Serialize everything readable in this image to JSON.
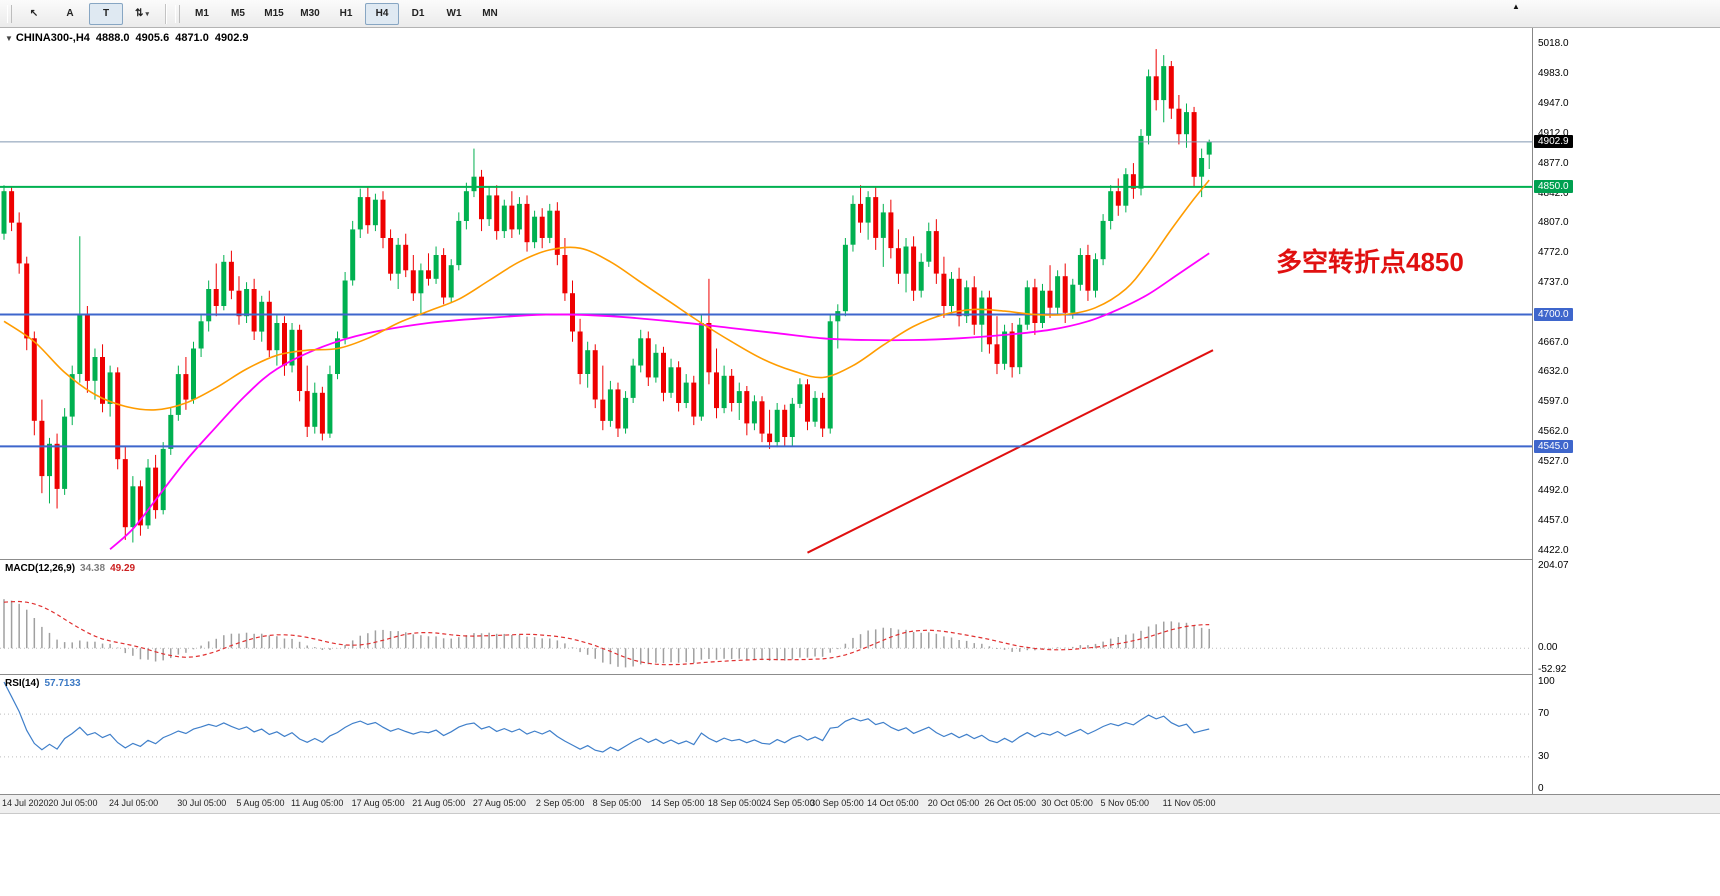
{
  "toolbar": {
    "tools": [
      {
        "name": "cursor-tool",
        "label": "↖",
        "pressed": false
      },
      {
        "name": "text-annotation-tool",
        "label": "A",
        "pressed": false
      },
      {
        "name": "text-box-tool",
        "label": "T",
        "pressed": true
      },
      {
        "name": "indicators-dropdown",
        "label": "⇅",
        "caret": "▾",
        "pressed": false
      }
    ],
    "timeframes": [
      "M1",
      "M5",
      "M15",
      "M30",
      "H1",
      "H4",
      "D1",
      "W1",
      "MN"
    ],
    "active_timeframe": "H4",
    "more_icon": "▲"
  },
  "title": {
    "marker": "▼",
    "symbol": "CHINA300-,H4",
    "open": "4888.0",
    "high": "4905.6",
    "low": "4871.0",
    "close": "4902.9"
  },
  "annotation": {
    "text": "多空转折点4850",
    "color": "#e01010"
  },
  "macd_panel": {
    "name": "MACD(12,26,9)",
    "value_main": "34.38",
    "value_signal": "49.29",
    "scale": [
      "204.07",
      "0.00",
      "-52.92"
    ],
    "max": 204.07,
    "min": -52.92
  },
  "rsi_panel": {
    "name": "RSI(14)",
    "value": "57.7133",
    "scale": [
      "100",
      "70",
      "30",
      "0"
    ],
    "levels": [
      70,
      30
    ]
  },
  "price_scale": {
    "ticks": [
      "5018.0",
      "4983.0",
      "4947.0",
      "4912.0",
      "4877.0",
      "4842.0",
      "4807.0",
      "4772.0",
      "4737.0",
      "4702.0",
      "4667.0",
      "4632.0",
      "4597.0",
      "4562.0",
      "4527.0",
      "4492.0",
      "4457.0",
      "4422.0"
    ],
    "tagged": [
      {
        "value": 4902.9,
        "label": "4902.9",
        "bg": "#000000"
      },
      {
        "value": 4850.0,
        "label": "4850.0",
        "bg": "#00a050"
      },
      {
        "value": 4700.0,
        "label": "4700.0",
        "bg": "#3e66cc"
      },
      {
        "value": 4545.0,
        "label": "4545.0",
        "bg": "#3e66cc"
      }
    ]
  },
  "colors": {
    "up": "#00b050",
    "down": "#ee0000",
    "ma_fast": "#ff9c00",
    "ma_slow": "#ff00ff",
    "macd_bar": "#a0a0a0",
    "macd_signal": "#e03030",
    "rsi_line": "#3f7fca",
    "bid_line": "#8096b0",
    "trend_line": "#e01010"
  },
  "chart_data": {
    "type": "candlestick",
    "symbol": "CHINA300",
    "timeframe": "H4",
    "ylim": [
      4422,
      5018
    ],
    "candles": [
      [
        4795,
        4852,
        4788,
        4845
      ],
      [
        4845,
        4850,
        4798,
        4808
      ],
      [
        4808,
        4820,
        4748,
        4760
      ],
      [
        4760,
        4768,
        4658,
        4672
      ],
      [
        4672,
        4680,
        4558,
        4575
      ],
      [
        4575,
        4600,
        4490,
        4510
      ],
      [
        4510,
        4555,
        4478,
        4548
      ],
      [
        4548,
        4560,
        4472,
        4495
      ],
      [
        4495,
        4590,
        4488,
        4580
      ],
      [
        4580,
        4640,
        4570,
        4630
      ],
      [
        4630,
        4792,
        4620,
        4700
      ],
      [
        4700,
        4710,
        4608,
        4622
      ],
      [
        4622,
        4660,
        4600,
        4650
      ],
      [
        4650,
        4665,
        4585,
        4595
      ],
      [
        4595,
        4640,
        4580,
        4632
      ],
      [
        4632,
        4638,
        4518,
        4530
      ],
      [
        4530,
        4545,
        4435,
        4450
      ],
      [
        4450,
        4510,
        4432,
        4498
      ],
      [
        4498,
        4505,
        4440,
        4452
      ],
      [
        4452,
        4530,
        4448,
        4520
      ],
      [
        4520,
        4535,
        4460,
        4470
      ],
      [
        4470,
        4550,
        4465,
        4542
      ],
      [
        4542,
        4590,
        4535,
        4582
      ],
      [
        4582,
        4640,
        4575,
        4630
      ],
      [
        4630,
        4650,
        4588,
        4600
      ],
      [
        4600,
        4668,
        4595,
        4660
      ],
      [
        4660,
        4700,
        4650,
        4692
      ],
      [
        4692,
        4740,
        4680,
        4730
      ],
      [
        4730,
        4760,
        4698,
        4710
      ],
      [
        4710,
        4770,
        4705,
        4762
      ],
      [
        4762,
        4775,
        4718,
        4728
      ],
      [
        4728,
        4745,
        4688,
        4698
      ],
      [
        4698,
        4738,
        4690,
        4730
      ],
      [
        4730,
        4742,
        4670,
        4680
      ],
      [
        4680,
        4722,
        4668,
        4715
      ],
      [
        4715,
        4728,
        4650,
        4658
      ],
      [
        4658,
        4700,
        4640,
        4690
      ],
      [
        4690,
        4698,
        4628,
        4640
      ],
      [
        4640,
        4690,
        4632,
        4682
      ],
      [
        4682,
        4688,
        4598,
        4610
      ],
      [
        4610,
        4640,
        4556,
        4568
      ],
      [
        4568,
        4620,
        4560,
        4608
      ],
      [
        4608,
        4615,
        4552,
        4560
      ],
      [
        4560,
        4640,
        4555,
        4630
      ],
      [
        4630,
        4680,
        4624,
        4672
      ],
      [
        4672,
        4750,
        4665,
        4740
      ],
      [
        4740,
        4810,
        4734,
        4800
      ],
      [
        4800,
        4848,
        4790,
        4838
      ],
      [
        4838,
        4850,
        4795,
        4805
      ],
      [
        4805,
        4842,
        4798,
        4835
      ],
      [
        4835,
        4845,
        4778,
        4790
      ],
      [
        4790,
        4800,
        4740,
        4748
      ],
      [
        4748,
        4790,
        4730,
        4782
      ],
      [
        4782,
        4795,
        4744,
        4752
      ],
      [
        4752,
        4770,
        4716,
        4725
      ],
      [
        4725,
        4760,
        4700,
        4752
      ],
      [
        4752,
        4772,
        4734,
        4742
      ],
      [
        4742,
        4780,
        4736,
        4770
      ],
      [
        4770,
        4778,
        4712,
        4720
      ],
      [
        4720,
        4765,
        4714,
        4758
      ],
      [
        4758,
        4820,
        4752,
        4810
      ],
      [
        4810,
        4855,
        4800,
        4845
      ],
      [
        4845,
        4895,
        4838,
        4862
      ],
      [
        4862,
        4870,
        4798,
        4812
      ],
      [
        4812,
        4850,
        4804,
        4840
      ],
      [
        4840,
        4852,
        4788,
        4798
      ],
      [
        4798,
        4835,
        4790,
        4828
      ],
      [
        4828,
        4845,
        4790,
        4800
      ],
      [
        4800,
        4838,
        4794,
        4830
      ],
      [
        4830,
        4840,
        4774,
        4785
      ],
      [
        4785,
        4822,
        4778,
        4815
      ],
      [
        4815,
        4825,
        4778,
        4790
      ],
      [
        4790,
        4830,
        4784,
        4822
      ],
      [
        4822,
        4832,
        4758,
        4770
      ],
      [
        4770,
        4790,
        4716,
        4725
      ],
      [
        4725,
        4740,
        4668,
        4680
      ],
      [
        4680,
        4695,
        4618,
        4630
      ],
      [
        4630,
        4668,
        4614,
        4658
      ],
      [
        4658,
        4665,
        4590,
        4600
      ],
      [
        4600,
        4640,
        4564,
        4575
      ],
      [
        4575,
        4622,
        4568,
        4612
      ],
      [
        4612,
        4620,
        4556,
        4566
      ],
      [
        4566,
        4610,
        4560,
        4602
      ],
      [
        4602,
        4648,
        4596,
        4640
      ],
      [
        4640,
        4682,
        4632,
        4672
      ],
      [
        4672,
        4680,
        4616,
        4626
      ],
      [
        4626,
        4665,
        4620,
        4655
      ],
      [
        4655,
        4662,
        4598,
        4608
      ],
      [
        4608,
        4648,
        4602,
        4638
      ],
      [
        4638,
        4645,
        4586,
        4596
      ],
      [
        4596,
        4630,
        4590,
        4620
      ],
      [
        4620,
        4628,
        4570,
        4580
      ],
      [
        4580,
        4700,
        4575,
        4690
      ],
      [
        4690,
        4742,
        4618,
        4632
      ],
      [
        4632,
        4660,
        4578,
        4590
      ],
      [
        4590,
        4640,
        4584,
        4628
      ],
      [
        4628,
        4636,
        4586,
        4596
      ],
      [
        4596,
        4620,
        4576,
        4610
      ],
      [
        4610,
        4616,
        4558,
        4572
      ],
      [
        4572,
        4605,
        4564,
        4598
      ],
      [
        4598,
        4604,
        4550,
        4560
      ],
      [
        4560,
        4588,
        4542,
        4550
      ],
      [
        4550,
        4596,
        4544,
        4588
      ],
      [
        4588,
        4594,
        4546,
        4556
      ],
      [
        4556,
        4602,
        4545,
        4595
      ],
      [
        4595,
        4625,
        4590,
        4618
      ],
      [
        4618,
        4624,
        4564,
        4574
      ],
      [
        4574,
        4610,
        4568,
        4602
      ],
      [
        4602,
        4608,
        4556,
        4566
      ],
      [
        4566,
        4700,
        4560,
        4692
      ],
      [
        4692,
        4712,
        4660,
        4704
      ],
      [
        4704,
        4790,
        4698,
        4782
      ],
      [
        4782,
        4840,
        4774,
        4830
      ],
      [
        4830,
        4852,
        4796,
        4808
      ],
      [
        4808,
        4845,
        4788,
        4838
      ],
      [
        4838,
        4850,
        4776,
        4790
      ],
      [
        4790,
        4830,
        4756,
        4820
      ],
      [
        4820,
        4835,
        4766,
        4778
      ],
      [
        4778,
        4800,
        4736,
        4748
      ],
      [
        4748,
        4790,
        4726,
        4780
      ],
      [
        4780,
        4792,
        4716,
        4728
      ],
      [
        4728,
        4772,
        4720,
        4762
      ],
      [
        4762,
        4808,
        4756,
        4798
      ],
      [
        4798,
        4812,
        4736,
        4748
      ],
      [
        4748,
        4768,
        4696,
        4710
      ],
      [
        4710,
        4750,
        4702,
        4742
      ],
      [
        4742,
        4755,
        4686,
        4698
      ],
      [
        4698,
        4740,
        4690,
        4732
      ],
      [
        4732,
        4745,
        4676,
        4688
      ],
      [
        4688,
        4728,
        4656,
        4720
      ],
      [
        4720,
        4728,
        4654,
        4665
      ],
      [
        4665,
        4698,
        4630,
        4642
      ],
      [
        4642,
        4688,
        4635,
        4680
      ],
      [
        4680,
        4690,
        4626,
        4638
      ],
      [
        4638,
        4696,
        4630,
        4688
      ],
      [
        4688,
        4740,
        4682,
        4732
      ],
      [
        4732,
        4742,
        4676,
        4690
      ],
      [
        4690,
        4736,
        4684,
        4728
      ],
      [
        4728,
        4758,
        4696,
        4708
      ],
      [
        4708,
        4752,
        4700,
        4745
      ],
      [
        4745,
        4760,
        4690,
        4702
      ],
      [
        4702,
        4742,
        4695,
        4735
      ],
      [
        4735,
        4778,
        4728,
        4770
      ],
      [
        4770,
        4782,
        4716,
        4728
      ],
      [
        4728,
        4772,
        4720,
        4765
      ],
      [
        4765,
        4818,
        4758,
        4810
      ],
      [
        4810,
        4852,
        4800,
        4845
      ],
      [
        4845,
        4860,
        4816,
        4828
      ],
      [
        4828,
        4872,
        4820,
        4865
      ],
      [
        4865,
        4878,
        4836,
        4848
      ],
      [
        4848,
        4918,
        4840,
        4910
      ],
      [
        4910,
        4988,
        4900,
        4980
      ],
      [
        4980,
        5012,
        4940,
        4952
      ],
      [
        4952,
        5005,
        4926,
        4992
      ],
      [
        4992,
        4998,
        4930,
        4942
      ],
      [
        4942,
        4958,
        4900,
        4912
      ],
      [
        4912,
        4948,
        4896,
        4938
      ],
      [
        4938,
        4944,
        4850,
        4862
      ],
      [
        4862,
        4895,
        4838,
        4884
      ],
      [
        4888,
        4905.6,
        4871,
        4902.9
      ]
    ],
    "overlays": {
      "ma_fast_orange": [
        [
          0,
          4692
        ],
        [
          4,
          4668
        ],
        [
          8,
          4632
        ],
        [
          12,
          4606
        ],
        [
          16,
          4592
        ],
        [
          20,
          4588
        ],
        [
          24,
          4596
        ],
        [
          28,
          4614
        ],
        [
          32,
          4636
        ],
        [
          36,
          4652
        ],
        [
          40,
          4658
        ],
        [
          44,
          4660
        ],
        [
          48,
          4672
        ],
        [
          52,
          4690
        ],
        [
          56,
          4704
        ],
        [
          60,
          4718
        ],
        [
          64,
          4740
        ],
        [
          68,
          4762
        ],
        [
          72,
          4776
        ],
        [
          76,
          4778
        ],
        [
          80,
          4762
        ],
        [
          84,
          4738
        ],
        [
          88,
          4714
        ],
        [
          92,
          4690
        ],
        [
          96,
          4668
        ],
        [
          100,
          4648
        ],
        [
          104,
          4634
        ],
        [
          108,
          4626
        ],
        [
          112,
          4640
        ],
        [
          116,
          4664
        ],
        [
          120,
          4686
        ],
        [
          124,
          4700
        ],
        [
          128,
          4706
        ],
        [
          132,
          4704
        ],
        [
          136,
          4700
        ],
        [
          140,
          4700
        ],
        [
          144,
          4708
        ],
        [
          148,
          4730
        ],
        [
          151,
          4762
        ],
        [
          154,
          4800
        ],
        [
          157,
          4836
        ],
        [
          159,
          4858
        ]
      ],
      "ma_slow_magenta": [
        [
          14,
          4424
        ],
        [
          17,
          4448
        ],
        [
          20,
          4482
        ],
        [
          24,
          4528
        ],
        [
          28,
          4568
        ],
        [
          32,
          4606
        ],
        [
          36,
          4636
        ],
        [
          42,
          4662
        ],
        [
          48,
          4678
        ],
        [
          56,
          4690
        ],
        [
          64,
          4696
        ],
        [
          72,
          4700
        ],
        [
          80,
          4698
        ],
        [
          88,
          4692
        ],
        [
          96,
          4684
        ],
        [
          102,
          4678
        ],
        [
          108,
          4672
        ],
        [
          114,
          4670
        ],
        [
          120,
          4670
        ],
        [
          126,
          4672
        ],
        [
          132,
          4676
        ],
        [
          138,
          4682
        ],
        [
          143,
          4692
        ],
        [
          147,
          4706
        ],
        [
          151,
          4724
        ],
        [
          155,
          4748
        ],
        [
          159,
          4772
        ]
      ]
    },
    "hlines": [
      {
        "price": 4850,
        "color": "#00b050",
        "width": 2
      },
      {
        "price": 4700,
        "color": "#3e66cc",
        "width": 2
      },
      {
        "price": 4545,
        "color": "#3e66cc",
        "width": 2
      }
    ],
    "bid_line": {
      "price": 4902.9
    },
    "trendline": {
      "from": [
        106,
        4420
      ],
      "to": [
        159.5,
        4658
      ]
    },
    "dates": [
      {
        "label": "14 Jul 2020",
        "i": 0.5
      },
      {
        "label": "20 Jul 05:00",
        "i": 9.5
      },
      {
        "label": "24 Jul 05:00",
        "i": 17.5
      },
      {
        "label": "30 Jul 05:00",
        "i": 26.5
      },
      {
        "label": "5 Aug 05:00",
        "i": 34
      },
      {
        "label": "11 Aug 05:00",
        "i": 41.5
      },
      {
        "label": "17 Aug 05:00",
        "i": 49.5
      },
      {
        "label": "21 Aug 05:00",
        "i": 57.5
      },
      {
        "label": "27 Aug 05:00",
        "i": 65.5
      },
      {
        "label": "2 Sep 05:00",
        "i": 73.5
      },
      {
        "label": "8 Sep 05:00",
        "i": 81
      },
      {
        "label": "14 Sep 05:00",
        "i": 89
      },
      {
        "label": "18 Sep 05:00",
        "i": 96.5
      },
      {
        "label": "24 Sep 05:00",
        "i": 103.5
      },
      {
        "label": "30 Sep 05:00",
        "i": 110
      },
      {
        "label": "14 Oct 05:00",
        "i": 117.5
      },
      {
        "label": "20 Oct 05:00",
        "i": 125.5
      },
      {
        "label": "26 Oct 05:00",
        "i": 133
      },
      {
        "label": "30 Oct 05:00",
        "i": 140.5
      },
      {
        "label": "5 Nov 05:00",
        "i": 148
      },
      {
        "label": "11 Nov 05:00",
        "i": 156.5
      }
    ]
  }
}
